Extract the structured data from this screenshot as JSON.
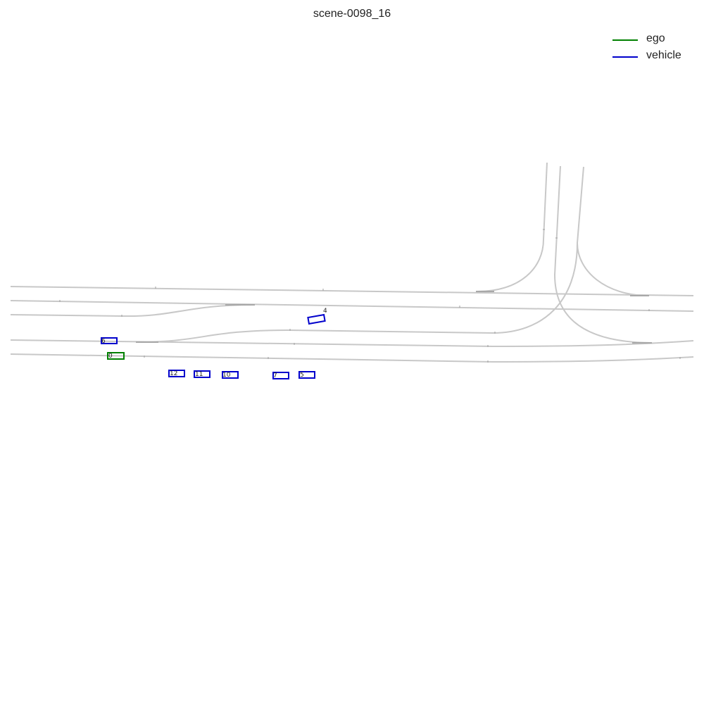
{
  "title": "scene-0098_16",
  "legend": [
    {
      "label": "ego",
      "color": "#008000"
    },
    {
      "label": "vehicle",
      "color": "#0000cc"
    }
  ],
  "ego": {
    "id": "0",
    "color": "#008000"
  },
  "vehicles": [
    {
      "id": "4",
      "color": "#0000cc"
    },
    {
      "id": "6",
      "color": "#0000cc"
    },
    {
      "id": "12",
      "color": "#0000cc"
    },
    {
      "id": "11",
      "color": "#0000cc"
    },
    {
      "id": "10",
      "color": "#0000cc"
    },
    {
      "id": "7",
      "color": "#0000cc"
    },
    {
      "id": "5",
      "color": "#0000cc"
    }
  ],
  "lane_color": "#c8c8c8"
}
